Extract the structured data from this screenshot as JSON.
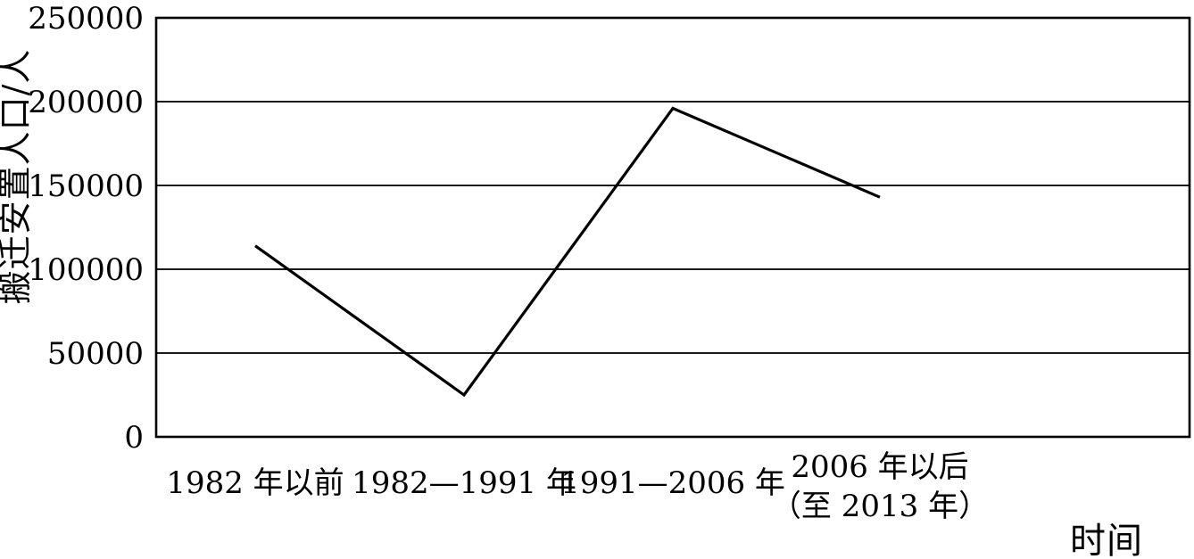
{
  "chart_data": {
    "type": "line",
    "title": "",
    "categories": [
      [
        "1982 年以前"
      ],
      [
        "1982—1991 年"
      ],
      [
        "1991—2006 年"
      ],
      [
        "2006 年以后",
        "（至 2013 年）"
      ]
    ],
    "values": [
      114000,
      25000,
      196000,
      143000
    ],
    "ylabel": "搬迁安置人口/人",
    "xlabel": "时间",
    "ylim": [
      0,
      250000
    ],
    "yticks": [
      0,
      50000,
      100000,
      150000,
      200000,
      250000
    ],
    "ytick_labels": [
      "0",
      "50000",
      "100000",
      "150000",
      "200000",
      "250000"
    ],
    "grid": "horizontal",
    "legend": "none",
    "line_color": "#000000",
    "grid_color": "#1a1a1a",
    "text_color": "#000000",
    "background": "#ffffff"
  }
}
